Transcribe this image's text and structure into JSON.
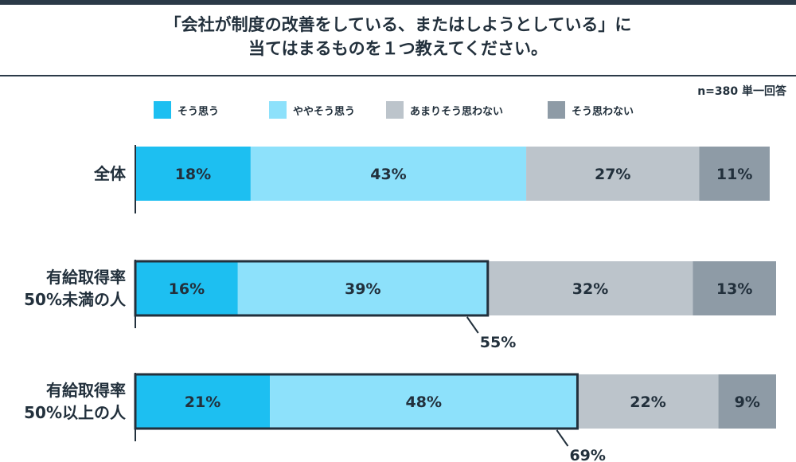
{
  "chart_data": {
    "type": "bar",
    "orientation": "horizontal",
    "stacked": true,
    "title_lines": [
      "「会社が制度の改善をしている、またはしようとしている」に",
      "当てはまるものを１つ教えてください。"
    ],
    "note": "n=380 単一回答",
    "legend_position": "top",
    "categories": [
      [
        "全体"
      ],
      [
        "有給取得率",
        "50%未満の人"
      ],
      [
        "有給取得率",
        "50%以上の人"
      ]
    ],
    "series": [
      {
        "name": "そう思う",
        "color": "#1dbff1",
        "values": [
          18,
          16,
          21
        ],
        "labels": [
          "18%",
          "16%",
          "21%"
        ]
      },
      {
        "name": "ややそう思う",
        "color": "#8de1fb",
        "values": [
          43,
          39,
          48
        ],
        "labels": [
          "43%",
          "39%",
          "48%"
        ]
      },
      {
        "name": "あまりそう思わない",
        "color": "#bcc4cb",
        "values": [
          27,
          32,
          22
        ],
        "labels": [
          "27%",
          "32%",
          "22%"
        ]
      },
      {
        "name": "そう思わない",
        "color": "#8e9ba6",
        "values": [
          11,
          13,
          9
        ],
        "labels": [
          "11%",
          "13%",
          "9%"
        ]
      }
    ],
    "callouts": [
      {
        "category_index": 1,
        "value": 55,
        "label": "55%"
      },
      {
        "category_index": 2,
        "value": 69,
        "label": "69%"
      }
    ],
    "xlim": [
      0,
      100
    ]
  }
}
